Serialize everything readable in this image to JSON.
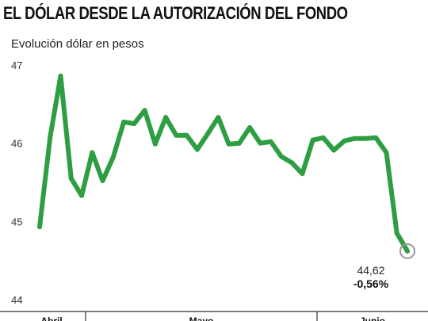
{
  "title": "EL DÓLAR DESDE LA AUTORIZACIÓN DEL FONDO",
  "subtitle": "Evolución dólar en pesos",
  "colors": {
    "line": "#2e9e43",
    "end_marker": "#999999",
    "axis": "#333333"
  },
  "chart_data": {
    "type": "line",
    "title": "EL DÓLAR DESDE LA AUTORIZACIÓN DEL FONDO",
    "ylabel": "Evolución dólar en pesos",
    "ylim": [
      44,
      47
    ],
    "yticks": [
      "47",
      "46",
      "45",
      "44"
    ],
    "grid": false,
    "month_labels": [
      "Abril",
      "Mayo",
      "Junio"
    ],
    "values": [
      44.93,
      46.08,
      46.86,
      45.55,
      45.33,
      45.88,
      45.52,
      45.82,
      46.27,
      46.25,
      46.42,
      45.99,
      46.33,
      46.1,
      46.1,
      45.92,
      46.12,
      46.33,
      45.99,
      46.0,
      46.2,
      46.0,
      46.02,
      45.83,
      45.75,
      45.61,
      46.04,
      46.07,
      45.91,
      46.03,
      46.06,
      46.06,
      46.07,
      45.88,
      44.85,
      44.62
    ],
    "last_value_label": "44,62",
    "last_change_label": "-0,56%"
  }
}
